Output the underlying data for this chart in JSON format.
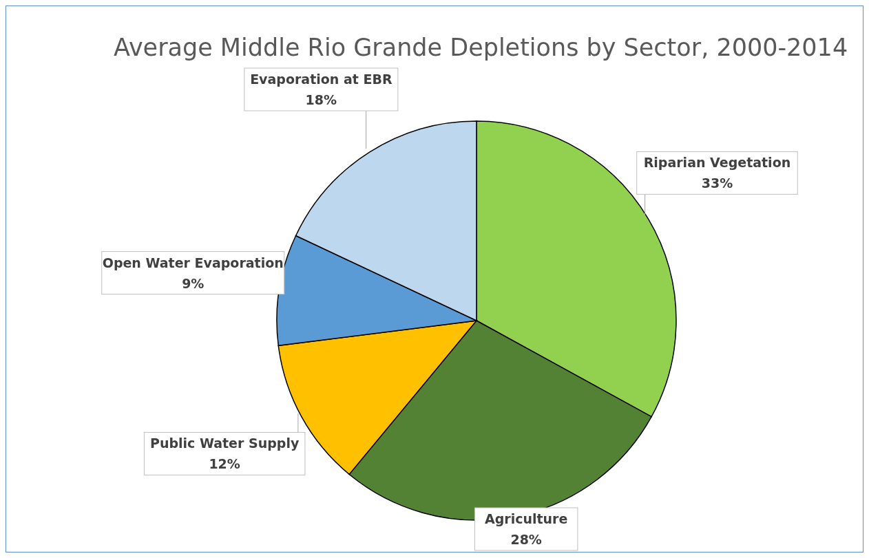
{
  "chart_data": {
    "type": "pie",
    "title": "Average Middle Rio Grande Depletions by Sector, 2000-2014",
    "categories": [
      "Riparian Vegetation",
      "Agriculture",
      "Public Water Supply",
      "Open Water Evaporation",
      "Evaporation at EBR"
    ],
    "values": [
      33,
      28,
      12,
      9,
      18
    ],
    "colors": [
      "#92d050",
      "#548235",
      "#ffc000",
      "#5b9bd5",
      "#bdd7ee"
    ],
    "value_labels": [
      "33%",
      "28%",
      "12%",
      "9%",
      "18%"
    ],
    "legend": false
  }
}
